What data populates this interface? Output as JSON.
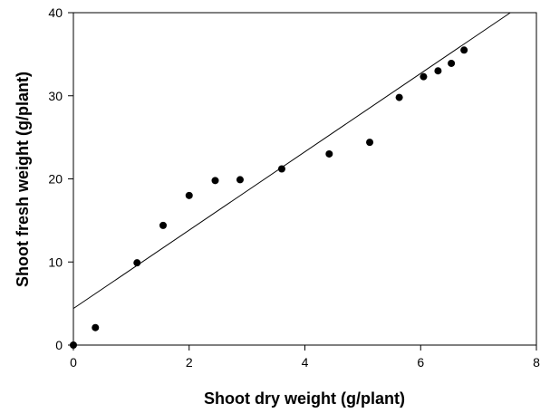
{
  "chart_data": {
    "type": "scatter",
    "xlabel": "Shoot dry weight (g/plant)",
    "ylabel": "Shoot fresh weight (g/plant)",
    "xlim": [
      0,
      8
    ],
    "ylim": [
      0,
      40
    ],
    "x_ticks": [
      0,
      2,
      4,
      6,
      8
    ],
    "y_ticks": [
      0,
      10,
      20,
      30,
      40
    ],
    "grid": false,
    "points": [
      {
        "x": 0.0,
        "y": 0.0
      },
      {
        "x": 0.38,
        "y": 2.1
      },
      {
        "x": 1.1,
        "y": 9.9
      },
      {
        "x": 1.55,
        "y": 14.4
      },
      {
        "x": 2.0,
        "y": 18.0
      },
      {
        "x": 2.45,
        "y": 19.8
      },
      {
        "x": 2.88,
        "y": 19.9
      },
      {
        "x": 3.6,
        "y": 21.2
      },
      {
        "x": 4.42,
        "y": 23.0
      },
      {
        "x": 5.12,
        "y": 24.4
      },
      {
        "x": 5.63,
        "y": 29.8
      },
      {
        "x": 6.05,
        "y": 32.3
      },
      {
        "x": 6.3,
        "y": 33.0
      },
      {
        "x": 6.53,
        "y": 33.9
      },
      {
        "x": 6.75,
        "y": 35.5
      }
    ],
    "fit_line": {
      "x": [
        0,
        7.55
      ],
      "y": [
        4.4,
        40
      ]
    },
    "colors": {
      "points": "#000000",
      "line": "#000000",
      "axes": "#000000"
    }
  }
}
